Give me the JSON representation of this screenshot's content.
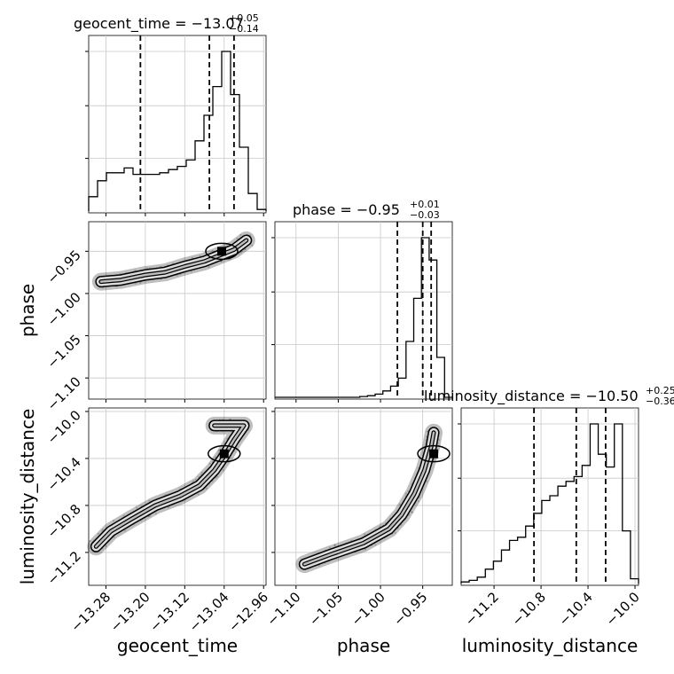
{
  "chart_data": {
    "type": "corner",
    "grid": true,
    "parameters": [
      {
        "name": "geocent_time",
        "label": "geocent_time",
        "title_main": "geocent_time = −13.07",
        "title_sup": "+0.05",
        "title_sub": "−0.14",
        "range": [
          -13.315,
          -12.955
        ],
        "ticks": [
          -13.28,
          -13.2,
          -13.12,
          -13.04,
          -12.96
        ],
        "tick_labels": [
          "−13.28",
          "−13.20",
          "−13.12",
          "−13.04",
          "−12.96"
        ],
        "quantiles": [
          -13.21,
          -13.07,
          -13.02
        ],
        "hist": [
          0.09,
          0.19,
          0.24,
          0.24,
          0.27,
          0.23,
          0.23,
          0.23,
          0.24,
          0.26,
          0.28,
          0.32,
          0.44,
          0.6,
          0.78,
          1.0,
          0.73,
          0.4,
          0.11,
          0.01
        ]
      },
      {
        "name": "phase",
        "label": "phase",
        "title_main": "phase = −0.95",
        "title_sup": "+0.01",
        "title_sub": "−0.03",
        "range": [
          -1.125,
          -0.915
        ],
        "ticks": [
          -1.1,
          -1.05,
          -1.0,
          -0.95
        ],
        "tick_labels": [
          "−1.10",
          "−1.05",
          "−1.00",
          "−0.95"
        ],
        "quantiles": [
          -0.98,
          -0.95,
          -0.94
        ],
        "hist": [
          0,
          0,
          0,
          0,
          0,
          0,
          0,
          0,
          0,
          0,
          0,
          0.005,
          0.01,
          0.02,
          0.04,
          0.07,
          0.12,
          0.35,
          0.62,
          1.0,
          0.86,
          0.25,
          0
        ]
      },
      {
        "name": "luminosity_distance",
        "label": "luminosity_distance",
        "title_main": "luminosity_distance = −10.50",
        "title_sup": "+0.25",
        "title_sub": "−0.36",
        "range": [
          -11.48,
          -9.97
        ],
        "ticks": [
          -11.2,
          -10.8,
          -10.4,
          -10.0
        ],
        "tick_labels": [
          "−11.2",
          "−10.8",
          "−10.4",
          "−10.0"
        ],
        "quantiles": [
          -10.86,
          -10.5,
          -10.25
        ],
        "hist": [
          0.01,
          0.02,
          0.04,
          0.09,
          0.14,
          0.21,
          0.27,
          0.29,
          0.36,
          0.44,
          0.52,
          0.55,
          0.61,
          0.64,
          0.67,
          0.74,
          1.0,
          0.81,
          0.73,
          1.0,
          0.33,
          0.03
        ]
      }
    ],
    "y_axis_ticks": {
      "phase": {
        "ticks": [
          -0.95,
          -1.0,
          -1.05,
          -1.1
        ],
        "tick_labels": [
          "−0.95",
          "−1.00",
          "−1.05",
          "−1.10"
        ]
      },
      "luminosity_distance": {
        "ticks": [
          -10.0,
          -10.4,
          -10.8,
          -11.2
        ],
        "tick_labels": [
          "−10.0",
          "−10.4",
          "−10.8",
          "−11.2"
        ]
      }
    },
    "curves": {
      "geocent_time_phase": [
        [
          -13.29,
          -0.986
        ],
        [
          -13.25,
          -0.984
        ],
        [
          -13.2,
          -0.978
        ],
        [
          -13.16,
          -0.975
        ],
        [
          -13.12,
          -0.968
        ],
        [
          -13.08,
          -0.962
        ],
        [
          -13.05,
          -0.955
        ],
        [
          -13.02,
          -0.948
        ],
        [
          -12.995,
          -0.937
        ]
      ],
      "geocent_time_luminosity_distance": [
        [
          -13.3,
          -11.15
        ],
        [
          -13.27,
          -11.02
        ],
        [
          -13.23,
          -10.92
        ],
        [
          -13.18,
          -10.8
        ],
        [
          -13.13,
          -10.72
        ],
        [
          -13.09,
          -10.63
        ],
        [
          -13.06,
          -10.5
        ],
        [
          -13.04,
          -10.38
        ],
        [
          -13.02,
          -10.24
        ],
        [
          -13.0,
          -10.12
        ],
        [
          -13.06,
          -10.12
        ]
      ],
      "phase_luminosity_distance": [
        [
          -1.09,
          -11.3
        ],
        [
          -1.06,
          -11.22
        ],
        [
          -1.02,
          -11.12
        ],
        [
          -0.99,
          -11.0
        ],
        [
          -0.975,
          -10.88
        ],
        [
          -0.96,
          -10.7
        ],
        [
          -0.948,
          -10.5
        ],
        [
          -0.94,
          -10.3
        ],
        [
          -0.937,
          -10.18
        ]
      ]
    },
    "peaks": {
      "geocent_time_phase": [
        -13.045,
        -0.95
      ],
      "geocent_time_luminosity_distance": [
        -13.04,
        -10.36
      ],
      "phase_luminosity_distance": [
        -0.937,
        -10.36
      ]
    }
  }
}
